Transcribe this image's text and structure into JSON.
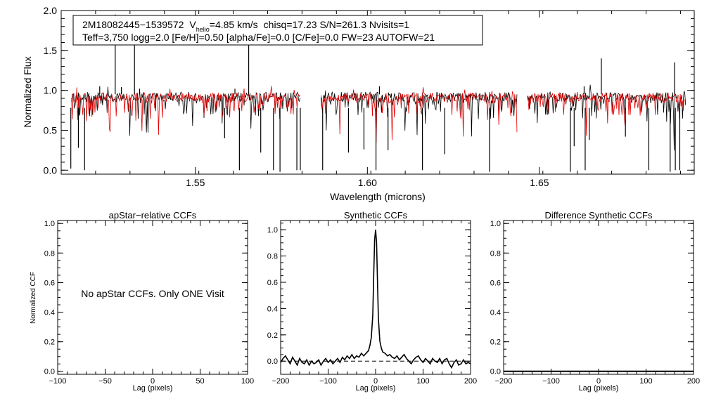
{
  "chart_data": [
    {
      "type": "line",
      "title": "",
      "xlabel": "Wavelength (microns)",
      "ylabel": "Normalized Flux",
      "xlim": [
        1.511,
        1.695
      ],
      "ylim": [
        -0.05,
        2.0
      ],
      "xticks": [
        1.55,
        1.6,
        1.65
      ],
      "xtick_labels": [
        "1.55",
        "1.60",
        "1.65"
      ],
      "yticks": [
        0.0,
        0.5,
        1.0,
        1.5,
        2.0
      ],
      "ytick_labels": [
        "0.0",
        "0.5",
        "1.0",
        "1.5",
        "2.0"
      ],
      "info": {
        "star": "2M18082445−1539572",
        "vhelio_symbol": "V",
        "vhelio_subscript": "helio",
        "vhelio_value": "=4.85 km/s",
        "stats": "chisq=17.23  S/N=261.3  Nvisits=1",
        "params": "Teff=3,750 logg=2.0 [Fe/H]=0.50 [alpha/Fe]=0.0 [C/Fe]=0.0 FW=23 AUTOFW=21"
      },
      "series": [
        {
          "name": "observed",
          "color": "#000000",
          "continuum": 0.92
        },
        {
          "name": "model",
          "color": "#e00000",
          "continuum": 0.91
        }
      ],
      "chips": [
        [
          1.514,
          1.5805
        ],
        [
          1.5865,
          1.6435
        ],
        [
          1.6465,
          1.6925
        ]
      ],
      "emission_lines": [
        {
          "x": 1.5267,
          "y": 1.95
        },
        {
          "x": 1.5323,
          "y": 1.72
        },
        {
          "x": 1.5655,
          "y": 1.65
        },
        {
          "x": 1.5222,
          "y": 1.05
        },
        {
          "x": 1.5285,
          "y": 1.04
        },
        {
          "x": 1.5615,
          "y": 1.02
        },
        {
          "x": 1.6035,
          "y": 1.05
        },
        {
          "x": 1.641,
          "y": 0.97
        },
        {
          "x": 1.668,
          "y": 1.4
        },
        {
          "x": 1.6893,
          "y": 1.35
        },
        {
          "x": 1.663,
          "y": 1.05
        }
      ],
      "absorption_lines": [
        {
          "x": 1.5138,
          "y": 0.02
        },
        {
          "x": 1.516,
          "y": 0.28
        },
        {
          "x": 1.5178,
          "y": 0.0
        },
        {
          "x": 1.5585,
          "y": 0.4
        },
        {
          "x": 1.5628,
          "y": 0.0
        },
        {
          "x": 1.569,
          "y": 0.22
        },
        {
          "x": 1.5727,
          "y": 0.0
        },
        {
          "x": 1.5746,
          "y": -0.02
        },
        {
          "x": 1.5795,
          "y": 0.0
        },
        {
          "x": 1.5805,
          "y": 0.0
        },
        {
          "x": 1.587,
          "y": 0.0
        },
        {
          "x": 1.5945,
          "y": 0.22
        },
        {
          "x": 1.599,
          "y": 0.26
        },
        {
          "x": 1.6025,
          "y": 0.0
        },
        {
          "x": 1.606,
          "y": 0.25
        },
        {
          "x": 1.616,
          "y": 0.0
        },
        {
          "x": 1.6225,
          "y": 0.2
        },
        {
          "x": 1.6355,
          "y": -0.02
        },
        {
          "x": 1.659,
          "y": -0.02
        },
        {
          "x": 1.6601,
          "y": 0.3
        },
        {
          "x": 1.6633,
          "y": 0.0
        },
        {
          "x": 1.6645,
          "y": 0.38
        },
        {
          "x": 1.6818,
          "y": 0.0
        },
        {
          "x": 1.688,
          "y": -0.02
        },
        {
          "x": 1.6895,
          "y": 0.0
        },
        {
          "x": 1.6908,
          "y": 0.0
        },
        {
          "x": 1.675,
          "y": 0.42
        }
      ]
    },
    {
      "type": "line",
      "title": "apStar−relative CCFs",
      "xlabel": "Lag (pixels)",
      "ylabel": "Normalized CCF",
      "xlim": [
        -100,
        100
      ],
      "ylim": [
        -0.02,
        1.02
      ],
      "xticks": [
        -100,
        -50,
        0,
        50,
        100
      ],
      "xtick_labels": [
        "−100",
        "−50",
        "0",
        "50",
        "100"
      ],
      "yticks": [
        0.0,
        0.2,
        0.4,
        0.6,
        0.8,
        1.0
      ],
      "ytick_labels": [
        "0.0",
        "0.2",
        "0.4",
        "0.6",
        "0.8",
        "1.0"
      ],
      "message": "No apStar CCFs.  Only ONE Visit",
      "series": []
    },
    {
      "type": "line",
      "title": "Synthetic CCFs",
      "xlabel": "Lag (pixels)",
      "ylabel": "",
      "xlim": [
        -200,
        200
      ],
      "ylim": [
        -0.1,
        1.07
      ],
      "xticks": [
        -200,
        -100,
        0,
        100,
        200
      ],
      "xtick_labels": [
        "−200",
        "−100",
        "0",
        "100",
        "200"
      ],
      "yticks": [
        0.0,
        0.2,
        0.4,
        0.6,
        0.8,
        1.0
      ],
      "ytick_labels": [
        "0.0",
        "0.2",
        "0.4",
        "0.6",
        "0.8",
        "1.0"
      ],
      "reference_line": {
        "y": 0.0,
        "style": "dashed"
      },
      "series": [
        {
          "name": "ccf",
          "color": "#000000",
          "x": [
            -200,
            -195,
            -190,
            -185,
            -180,
            -175,
            -170,
            -165,
            -160,
            -155,
            -150,
            -145,
            -140,
            -135,
            -130,
            -125,
            -120,
            -115,
            -110,
            -105,
            -100,
            -95,
            -90,
            -85,
            -80,
            -75,
            -70,
            -65,
            -60,
            -55,
            -50,
            -45,
            -40,
            -35,
            -30,
            -25,
            -20,
            -15,
            -12,
            -9,
            -6,
            -4,
            -2,
            0,
            2,
            4,
            6,
            9,
            12,
            15,
            20,
            25,
            30,
            35,
            40,
            45,
            50,
            55,
            60,
            65,
            70,
            75,
            80,
            85,
            90,
            95,
            100,
            105,
            110,
            115,
            120,
            125,
            130,
            135,
            140,
            145,
            150,
            155,
            160,
            165,
            170,
            175,
            180,
            185,
            190,
            195,
            200
          ],
          "y": [
            -0.01,
            0.02,
            0.04,
            0.01,
            -0.02,
            0.03,
            0.0,
            -0.03,
            0.02,
            -0.01,
            -0.02,
            0.01,
            -0.03,
            0.0,
            -0.02,
            -0.01,
            0.01,
            -0.03,
            0.0,
            0.02,
            -0.01,
            0.01,
            -0.02,
            0.0,
            0.02,
            -0.01,
            0.03,
            0.01,
            0.04,
            0.02,
            0.05,
            0.02,
            0.04,
            0.03,
            0.06,
            0.04,
            0.06,
            0.08,
            0.12,
            0.18,
            0.35,
            0.65,
            0.92,
            1.0,
            0.9,
            0.6,
            0.32,
            0.15,
            0.1,
            0.07,
            0.06,
            0.04,
            0.05,
            0.03,
            0.02,
            0.04,
            0.01,
            0.03,
            0.05,
            0.02,
            0.0,
            -0.02,
            0.01,
            0.03,
            0.04,
            0.01,
            -0.01,
            0.02,
            0.0,
            -0.02,
            0.02,
            0.0,
            -0.01,
            0.02,
            -0.02,
            0.01,
            0.02,
            -0.02,
            -0.05,
            -0.01,
            0.01,
            -0.03,
            -0.02,
            0.01,
            -0.02,
            -0.01,
            -0.02
          ]
        }
      ]
    },
    {
      "type": "line",
      "title": "Difference Synthetic CCFs",
      "xlabel": "Lag (pixels)",
      "ylabel": "",
      "xlim": [
        -200,
        200
      ],
      "ylim": [
        -0.02,
        1.02
      ],
      "xticks": [
        -200,
        -100,
        0,
        100,
        200
      ],
      "xtick_labels": [
        "−200",
        "−100",
        "0",
        "100",
        "200"
      ],
      "yticks": [
        0.0,
        0.2,
        0.4,
        0.6,
        0.8,
        1.0
      ],
      "ytick_labels": [
        "0.0",
        "0.2",
        "0.4",
        "0.6",
        "0.8",
        "1.0"
      ],
      "series": [
        {
          "name": "difference",
          "color": "#000000",
          "x": [
            -200,
            200
          ],
          "y": [
            0.0,
            0.0
          ]
        }
      ]
    }
  ]
}
